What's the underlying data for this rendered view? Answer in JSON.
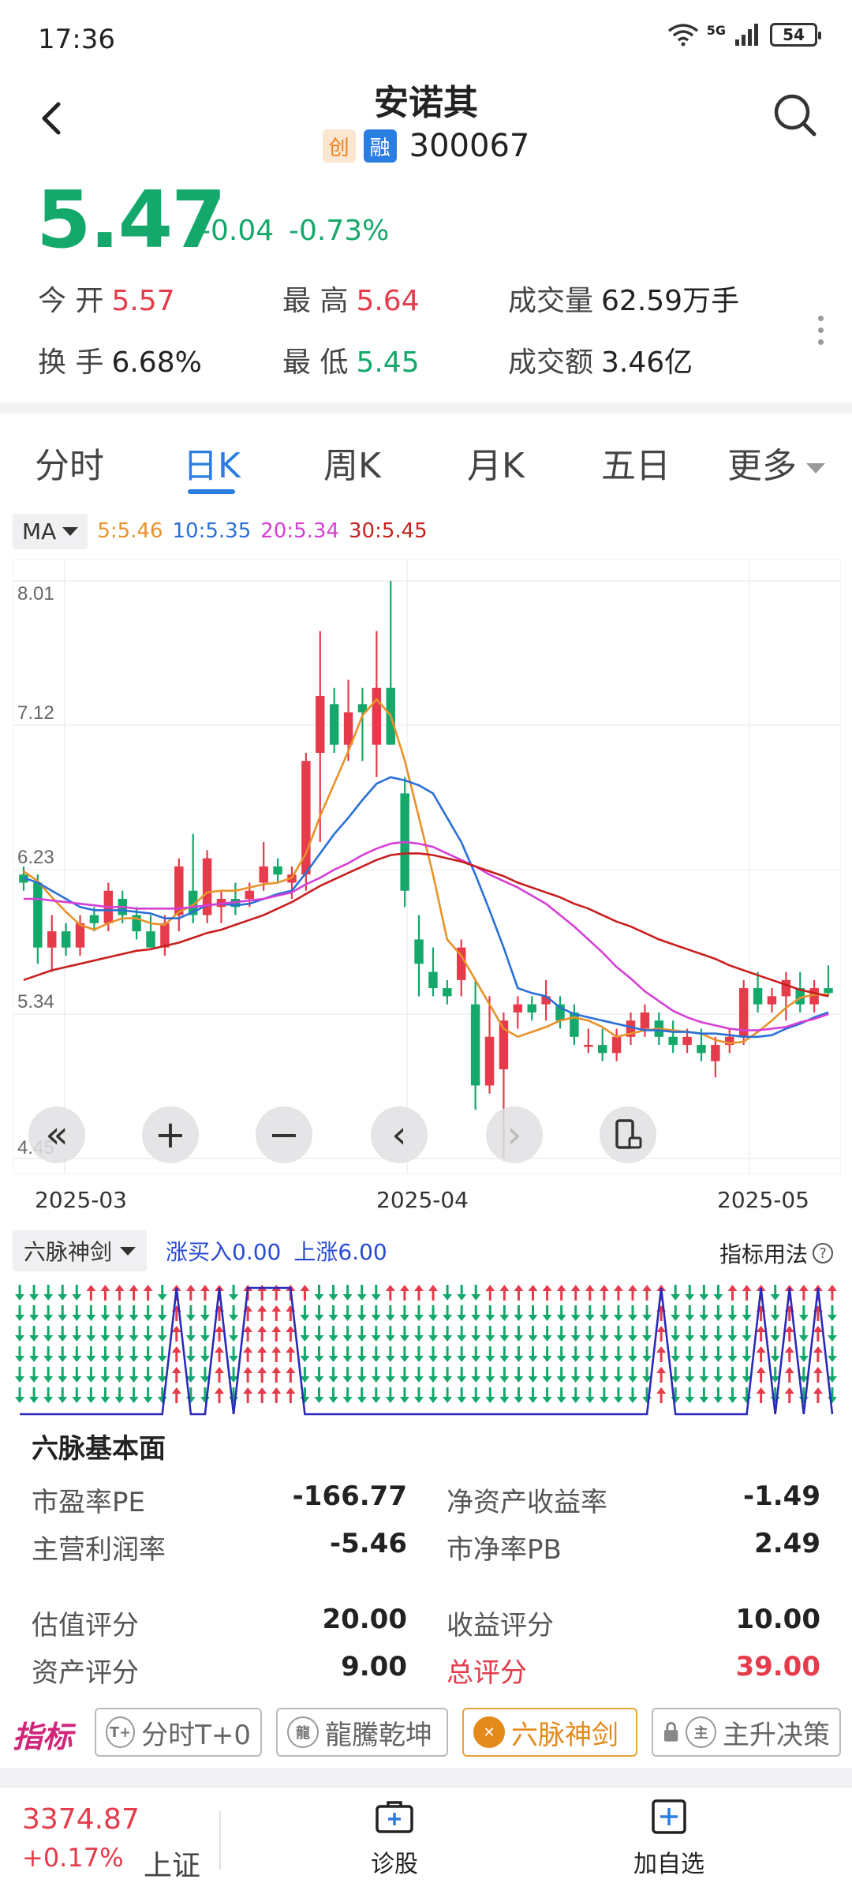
{
  "status": {
    "time": "17:36",
    "network": "5G",
    "battery": "54"
  },
  "header": {
    "name": "安诺其",
    "badge_chuang": "创",
    "badge_rong": "融",
    "code": "300067"
  },
  "quote": {
    "price": "5.47",
    "change": "-0.04",
    "change_pct": "-0.73%",
    "open_label": "今 开",
    "open": "5.57",
    "high_label": "最 高",
    "high": "5.64",
    "volume_label": "成交量",
    "volume": "62.59万手",
    "turnover_label": "换 手",
    "turnover": "6.68%",
    "low_label": "最 低",
    "low": "5.45",
    "amount_label": "成交额",
    "amount": "3.46亿"
  },
  "tabs": [
    {
      "label": "分时"
    },
    {
      "label": "日K"
    },
    {
      "label": "周K"
    },
    {
      "label": "月K"
    },
    {
      "label": "五日"
    },
    {
      "label": "更多"
    }
  ],
  "ma": {
    "selector": "MA",
    "ma5": "5:5.46",
    "ma10": "10:5.35",
    "ma20": "20:5.34",
    "ma30": "30:5.45"
  },
  "colors": {
    "up": "#e53b4a",
    "down": "#14a86b",
    "ma5": "#e8922a",
    "ma10": "#2a6fd6",
    "ma20": "#d63ed6",
    "ma30": "#c81e1e"
  },
  "chart_data": {
    "type": "candlestick",
    "y_ticks": [
      "8.01",
      "7.12",
      "6.23",
      "5.34",
      "4.45"
    ],
    "x_ticks": [
      "2025-03",
      "2025-04",
      "2025-05"
    ],
    "ylim": [
      4.45,
      8.01
    ],
    "candles": [
      [
        6.2,
        6.25,
        6.1,
        6.15
      ],
      [
        6.15,
        6.2,
        5.65,
        5.75
      ],
      [
        5.75,
        5.95,
        5.6,
        5.85
      ],
      [
        5.85,
        5.9,
        5.7,
        5.75
      ],
      [
        5.75,
        5.95,
        5.7,
        5.9
      ],
      [
        5.95,
        6.0,
        5.85,
        5.9
      ],
      [
        5.9,
        6.15,
        5.85,
        6.1
      ],
      [
        6.05,
        6.1,
        5.9,
        5.95
      ],
      [
        5.95,
        6.0,
        5.8,
        5.85
      ],
      [
        5.85,
        5.95,
        5.75,
        5.75
      ],
      [
        5.75,
        5.95,
        5.7,
        5.9
      ],
      [
        5.95,
        6.3,
        5.85,
        6.25
      ],
      [
        6.1,
        6.45,
        5.9,
        5.95
      ],
      [
        5.95,
        6.35,
        5.9,
        6.3
      ],
      [
        6.0,
        6.1,
        5.9,
        6.05
      ],
      [
        6.05,
        6.15,
        5.95,
        6.0
      ],
      [
        6.05,
        6.15,
        6.0,
        6.1
      ],
      [
        6.15,
        6.4,
        6.1,
        6.25
      ],
      [
        6.25,
        6.3,
        6.15,
        6.2
      ],
      [
        6.15,
        6.25,
        6.05,
        6.2
      ],
      [
        6.2,
        6.95,
        6.1,
        6.9
      ],
      [
        6.95,
        7.7,
        6.4,
        7.3
      ],
      [
        7.25,
        7.35,
        6.95,
        7.0
      ],
      [
        7.0,
        7.4,
        6.9,
        7.2
      ],
      [
        7.25,
        7.35,
        6.9,
        7.2
      ],
      [
        7.0,
        7.7,
        6.8,
        7.35
      ],
      [
        7.35,
        8.01,
        7.0,
        7.0
      ],
      [
        6.7,
        6.8,
        6.0,
        6.1
      ],
      [
        5.8,
        5.95,
        5.45,
        5.65
      ],
      [
        5.6,
        5.75,
        5.45,
        5.5
      ],
      [
        5.5,
        5.55,
        5.4,
        5.45
      ],
      [
        5.55,
        5.8,
        5.45,
        5.75
      ],
      [
        5.4,
        5.55,
        4.75,
        4.9
      ],
      [
        4.9,
        5.45,
        4.85,
        5.2
      ],
      [
        5.0,
        5.35,
        4.45,
        5.3
      ],
      [
        5.35,
        5.45,
        5.25,
        5.4
      ],
      [
        5.4,
        5.45,
        5.3,
        5.35
      ],
      [
        5.4,
        5.55,
        5.3,
        5.45
      ],
      [
        5.4,
        5.45,
        5.25,
        5.3
      ],
      [
        5.35,
        5.4,
        5.15,
        5.2
      ],
      [
        5.15,
        5.25,
        5.1,
        5.15
      ],
      [
        5.15,
        5.25,
        5.05,
        5.1
      ],
      [
        5.1,
        5.25,
        5.05,
        5.2
      ],
      [
        5.2,
        5.35,
        5.15,
        5.3
      ],
      [
        5.25,
        5.4,
        5.2,
        5.35
      ],
      [
        5.3,
        5.35,
        5.15,
        5.2
      ],
      [
        5.2,
        5.3,
        5.1,
        5.15
      ],
      [
        5.15,
        5.25,
        5.1,
        5.2
      ],
      [
        5.15,
        5.25,
        5.05,
        5.1
      ],
      [
        5.05,
        5.2,
        4.95,
        5.15
      ],
      [
        5.15,
        5.25,
        5.1,
        5.2
      ],
      [
        5.2,
        5.55,
        5.15,
        5.5
      ],
      [
        5.5,
        5.6,
        5.35,
        5.4
      ],
      [
        5.4,
        5.5,
        5.35,
        5.45
      ],
      [
        5.45,
        5.6,
        5.3,
        5.55
      ],
      [
        5.5,
        5.6,
        5.35,
        5.4
      ],
      [
        5.4,
        5.55,
        5.35,
        5.5
      ],
      [
        5.5,
        5.64,
        5.45,
        5.47
      ]
    ],
    "series": [
      {
        "name": "5",
        "values": [
          6.22,
          6.16,
          6.06,
          5.97,
          5.89,
          5.86,
          5.9,
          5.93,
          5.93,
          5.9,
          5.89,
          5.97,
          6.01,
          6.09,
          6.1,
          6.1,
          6.12,
          6.14,
          6.15,
          6.18,
          6.33,
          6.56,
          6.76,
          6.96,
          7.18,
          7.28,
          7.18,
          6.9,
          6.55,
          6.2,
          5.8,
          5.7,
          5.55,
          5.4,
          5.25,
          5.2,
          5.23,
          5.26,
          5.3,
          5.32,
          5.3,
          5.26,
          5.2,
          5.22,
          5.24,
          5.25,
          5.24,
          5.23,
          5.22,
          5.18,
          5.16,
          5.17,
          5.23,
          5.3,
          5.38,
          5.44,
          5.46,
          5.46
        ]
      },
      {
        "name": "10",
        "values": [
          6.18,
          6.15,
          6.1,
          6.05,
          6.0,
          5.98,
          5.98,
          5.98,
          5.97,
          5.96,
          5.93,
          5.93,
          5.97,
          6.01,
          6.02,
          6.01,
          6.02,
          6.05,
          6.08,
          6.1,
          6.21,
          6.33,
          6.45,
          6.55,
          6.66,
          6.76,
          6.8,
          6.78,
          6.75,
          6.7,
          6.55,
          6.4,
          6.2,
          5.98,
          5.75,
          5.5,
          5.47,
          5.45,
          5.38,
          5.34,
          5.32,
          5.3,
          5.28,
          5.26,
          5.24,
          5.24,
          5.23,
          5.23,
          5.22,
          5.22,
          5.21,
          5.2,
          5.2,
          5.21,
          5.25,
          5.28,
          5.32,
          5.35
        ]
      },
      {
        "name": "20",
        "values": [
          6.05,
          6.05,
          6.04,
          6.03,
          6.02,
          6.01,
          6.0,
          6.0,
          5.99,
          5.99,
          5.99,
          5.99,
          6.0,
          6.01,
          6.02,
          6.03,
          6.04,
          6.05,
          6.07,
          6.09,
          6.14,
          6.18,
          6.23,
          6.27,
          6.32,
          6.36,
          6.39,
          6.4,
          6.39,
          6.37,
          6.33,
          6.29,
          6.25,
          6.2,
          6.16,
          6.12,
          6.07,
          6.02,
          5.95,
          5.88,
          5.8,
          5.72,
          5.63,
          5.56,
          5.48,
          5.42,
          5.36,
          5.32,
          5.29,
          5.27,
          5.25,
          5.24,
          5.24,
          5.25,
          5.26,
          5.29,
          5.31,
          5.34
        ]
      },
      {
        "name": "30",
        "values": [
          5.55,
          5.58,
          5.61,
          5.63,
          5.65,
          5.67,
          5.69,
          5.71,
          5.73,
          5.74,
          5.76,
          5.78,
          5.81,
          5.84,
          5.86,
          5.89,
          5.92,
          5.95,
          5.99,
          6.03,
          6.08,
          6.13,
          6.17,
          6.21,
          6.25,
          6.29,
          6.32,
          6.33,
          6.33,
          6.32,
          6.3,
          6.28,
          6.25,
          6.22,
          6.19,
          6.15,
          6.12,
          6.09,
          6.06,
          6.02,
          5.99,
          5.95,
          5.91,
          5.88,
          5.84,
          5.8,
          5.77,
          5.74,
          5.71,
          5.68,
          5.64,
          5.61,
          5.58,
          5.55,
          5.52,
          5.49,
          5.47,
          5.45
        ]
      }
    ]
  },
  "controls": {
    "rewind": "«",
    "zoom_in": "+",
    "zoom_out": "−",
    "prev": "‹",
    "next": "›"
  },
  "indicator": {
    "selector": "六脉神剑",
    "info1": "涨买入0.00",
    "info2": "上涨6.00",
    "help": "指标用法",
    "help_icon": "?"
  },
  "six_sword_states": [
    0,
    0,
    0,
    0,
    0,
    1,
    1,
    1,
    1,
    1,
    0,
    6,
    1,
    1,
    6,
    0,
    6,
    6,
    6,
    6,
    1,
    0,
    0,
    0,
    0,
    0,
    1,
    1,
    1,
    1,
    0,
    0,
    0,
    1,
    1,
    1,
    1,
    1,
    1,
    1,
    1,
    1,
    1,
    1,
    1,
    6,
    0,
    0,
    0,
    0,
    1,
    1,
    6,
    0,
    6,
    1,
    6,
    1
  ],
  "fundamental": {
    "title": "六脉基本面",
    "rows": [
      {
        "l1": "市盈率PE",
        "v1": "-166.77",
        "l2": "净资产收益率",
        "v2": "-1.49"
      },
      {
        "l1": "主营利润率",
        "v1": "-5.46",
        "l2": "市净率PB",
        "v2": "2.49"
      },
      {
        "l1": "估值评分",
        "v1": "20.00",
        "l2": "收益评分",
        "v2": "10.00"
      },
      {
        "l1": "资产评分",
        "v1": "9.00",
        "l2": "总评分",
        "v2": "39.00"
      }
    ]
  },
  "indicator_tabs": {
    "logo": "指标",
    "items": [
      {
        "icon": "T+",
        "label": "分时T+0"
      },
      {
        "icon": "龍",
        "label": "龍騰乾坤"
      },
      {
        "icon": "✕",
        "label": "六脉神剑"
      },
      {
        "icon": "主",
        "label": "主升决策"
      }
    ]
  },
  "bottom": {
    "index_value": "3374.87",
    "index_change": "+0.17%",
    "index_name": "上证",
    "diagnose": "诊股",
    "add_watch": "加自选"
  }
}
